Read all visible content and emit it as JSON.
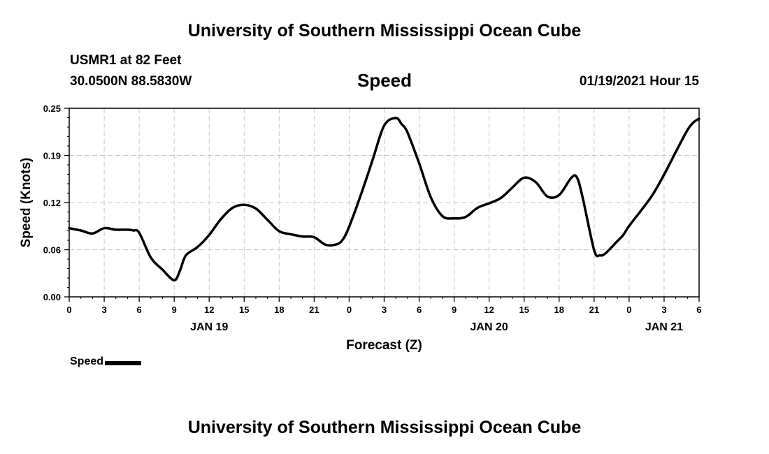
{
  "header": {
    "title": "University of Southern Mississippi Ocean Cube",
    "station": "USMR1 at 82 Feet",
    "coords": "30.0500N 88.5830W",
    "chart_title": "Speed",
    "datetime": "01/19/2021 Hour 15"
  },
  "footer": {
    "title": "University of Southern Mississippi Ocean Cube"
  },
  "legend": {
    "label": "Speed"
  },
  "chart_data": {
    "type": "line",
    "title": "Speed",
    "xlabel": "Forecast (Z)",
    "ylabel": "Speed (Knots)",
    "ylim": [
      0,
      0.25
    ],
    "xlim": [
      0,
      54
    ],
    "y_ticks": [
      "0.00",
      "0.06",
      "0.12",
      "0.19",
      "0.25"
    ],
    "y_tick_values": [
      0,
      0.0625,
      0.125,
      0.1875,
      0.25
    ],
    "x_tick_hours": [
      0,
      3,
      6,
      9,
      12,
      15,
      18,
      21,
      24,
      27,
      30,
      33,
      36,
      39,
      42,
      45,
      48,
      51,
      54
    ],
    "x_tick_labels": [
      "0",
      "3",
      "6",
      "9",
      "12",
      "15",
      "18",
      "21",
      "0",
      "3",
      "6",
      "9",
      "12",
      "15",
      "18",
      "21",
      "0",
      "3",
      "6"
    ],
    "day_labels": [
      {
        "label": "JAN 19",
        "hour": 12
      },
      {
        "label": "JAN 20",
        "hour": 36
      },
      {
        "label": "JAN 21",
        "hour": 51
      }
    ],
    "grid": true,
    "line_color": "#000000",
    "series": [
      {
        "name": "Speed",
        "x": [
          0,
          1,
          2,
          3,
          4,
          5,
          5.5,
          6,
          7,
          8,
          9,
          9.5,
          10,
          11,
          12,
          13,
          14,
          15,
          16,
          17,
          18,
          19,
          20,
          21,
          22,
          23,
          23.5,
          24,
          25,
          26,
          27,
          28,
          28.5,
          29,
          30,
          31,
          32,
          33,
          34,
          35,
          36,
          37,
          38,
          39,
          40,
          41,
          42,
          43,
          43.5,
          44,
          45,
          45.5,
          46,
          47,
          47.5,
          48,
          49,
          50,
          51,
          52,
          53,
          53.5,
          54
        ],
        "y": [
          0.091,
          0.088,
          0.084,
          0.091,
          0.089,
          0.089,
          0.088,
          0.085,
          0.052,
          0.036,
          0.022,
          0.035,
          0.055,
          0.066,
          0.082,
          0.103,
          0.118,
          0.122,
          0.117,
          0.102,
          0.087,
          0.083,
          0.08,
          0.079,
          0.069,
          0.07,
          0.077,
          0.093,
          0.135,
          0.181,
          0.227,
          0.237,
          0.229,
          0.218,
          0.177,
          0.132,
          0.107,
          0.104,
          0.106,
          0.118,
          0.124,
          0.131,
          0.145,
          0.158,
          0.152,
          0.133,
          0.135,
          0.157,
          0.159,
          0.133,
          0.062,
          0.055,
          0.058,
          0.074,
          0.082,
          0.094,
          0.114,
          0.135,
          0.162,
          0.192,
          0.221,
          0.231,
          0.236
        ]
      }
    ]
  }
}
